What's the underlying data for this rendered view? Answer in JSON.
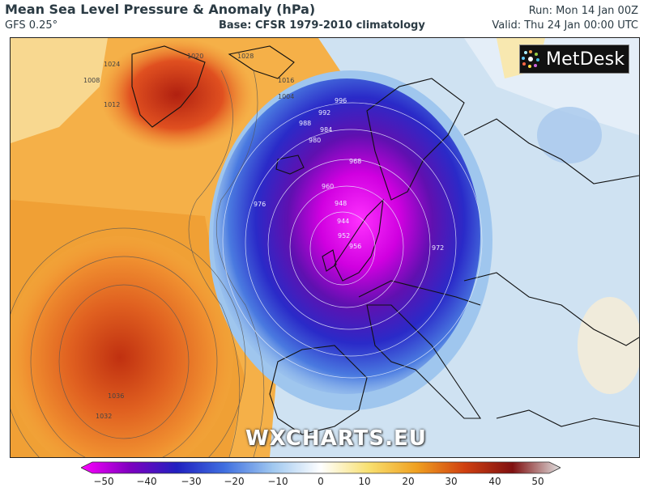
{
  "header": {
    "title": "Mean Sea Level Pressure & Anomaly (hPa)",
    "model": "GFS 0.25°",
    "base": "Base: CFSR 1979-2010 climatology",
    "run": "Run: Mon 14 Jan 00Z",
    "valid": "Valid: Thu 24 Jan 00:00 UTC"
  },
  "logo": {
    "text": "MetDesk"
  },
  "watermark": "WXCHARTS.EU",
  "isobar_labels": [
    "1024",
    "1020",
    "1016",
    "1028",
    "1012",
    "1008",
    "1004",
    "996",
    "992",
    "988",
    "984",
    "980",
    "976",
    "968",
    "960",
    "948",
    "944",
    "952",
    "956",
    "972",
    "1036",
    "1032"
  ],
  "colorbar": {
    "ticks": [
      "−50",
      "−40",
      "−30",
      "−20",
      "−10",
      "0",
      "10",
      "20",
      "30",
      "40",
      "50"
    ],
    "colors": [
      "#ff00ff",
      "#8000c0",
      "#2020c0",
      "#4070e0",
      "#a0c8f0",
      "#ffffff",
      "#f8e070",
      "#f0a020",
      "#d04010",
      "#801010",
      "#e0e0e0"
    ]
  }
}
